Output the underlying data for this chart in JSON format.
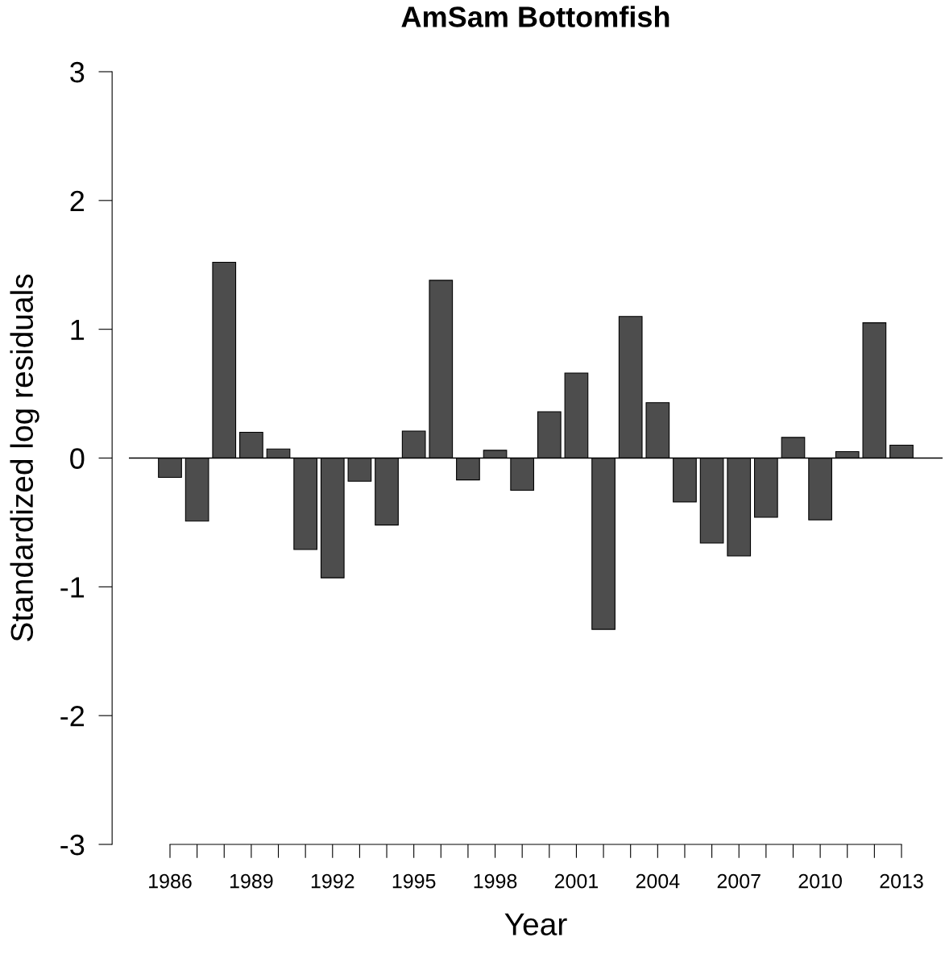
{
  "chart_data": {
    "type": "bar",
    "title": "AmSam Bottomfish",
    "xlabel": "Year",
    "ylabel": "Standardized log residuals",
    "categories": [
      "1986",
      null,
      null,
      "1989",
      null,
      null,
      "1992",
      null,
      null,
      "1995",
      null,
      null,
      "1998",
      null,
      null,
      "2001",
      null,
      null,
      "2004",
      null,
      null,
      "2007",
      null,
      null,
      "2010",
      null,
      null,
      "2013"
    ],
    "values": [
      -0.15,
      -0.49,
      1.52,
      0.2,
      0.07,
      -0.71,
      -0.93,
      -0.18,
      -0.52,
      0.21,
      1.38,
      -0.17,
      0.06,
      -0.25,
      0.36,
      0.66,
      -1.33,
      1.1,
      0.43,
      -0.34,
      -0.66,
      -0.76,
      -0.46,
      0.16,
      -0.48,
      0.05,
      1.05,
      0.1
    ],
    "color": "#4d4d4d",
    "ylim": [
      -3,
      3
    ],
    "yticks": [
      -3,
      -2,
      -1,
      0,
      1,
      2,
      3
    ],
    "ref_lines": [
      {
        "axis": "y",
        "value": 0,
        "color": "#000000"
      }
    ],
    "grid": false,
    "legend": false
  }
}
